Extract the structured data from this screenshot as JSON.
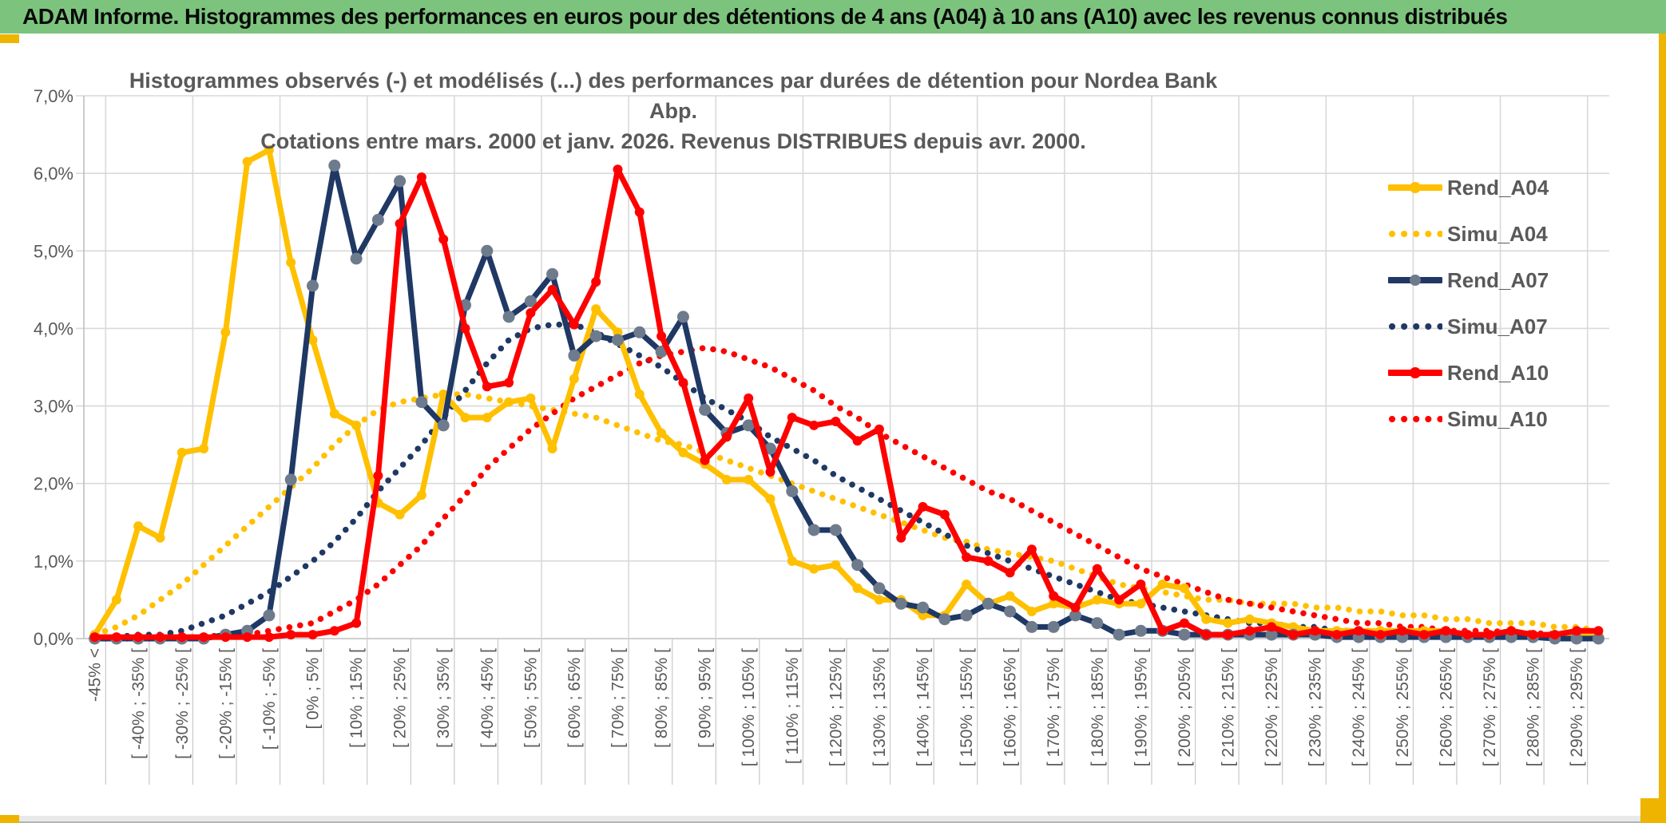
{
  "page": {
    "header_title": "ADAM Informe. Histogrammes des performances en euros pour des détentions de 4 ans (A04) à 10 ans (A10) avec les revenus connus distribués",
    "colors": {
      "header_bg": "#7CC47D",
      "accent_gold": "#EFB400",
      "title_text": "#595959",
      "grid": "#D9D9D9",
      "axis_line": "#BFBFBF",
      "gold_series": "#FFC000",
      "navy_series": "#1F3864",
      "navy_marker": "#6E7B8C",
      "red_series": "#FF0000"
    }
  },
  "chart_data": {
    "type": "line",
    "title_line1": "Histogrammes observés (-) et modélisés (...) des performances par durées de détention pour Nordea Bank Abp.",
    "title_line2": "Cotations entre mars. 2000 et janv. 2026. Revenus DISTRIBUES depuis avr. 2000.",
    "grid": "on",
    "legend_position": "inside-right",
    "ylim": [
      0,
      7
    ],
    "y_tick_labels": [
      "0,0%",
      "1,0%",
      "2,0%",
      "3,0%",
      "4,0%",
      "5,0%",
      "6,0%",
      "7,0%"
    ],
    "n_bins": 70,
    "bins_per_labeled_tick": 2,
    "x_tick_labels": [
      "-45% <",
      "[ -40% ; -35% [",
      "[ -30% ; -25% [",
      "[ -20% ; -15% [",
      "[ -10% ; -5% [",
      "[ 0% ; 5% [",
      "[ 10% ; 15% [",
      "[ 20% ; 25% [",
      "[ 30% ; 35% [",
      "[ 40% ; 45% [",
      "[ 50% ; 55% [",
      "[ 60% ; 65% [",
      "[ 70% ; 75% [",
      "[ 80% ; 85% [",
      "[ 90% ; 95% [",
      "[ 100% ; 105% [",
      "[ 110% ; 115% [",
      "[ 120% ; 125% [",
      "[ 130% ; 135% [",
      "[ 140% ; 145% [",
      "[ 150% ; 155% [",
      "[ 160% ; 165% [",
      "[ 170% ; 175% [",
      "[ 180% ; 185% [",
      "[ 190% ; 195% [",
      "[ 200% ; 205% [",
      "[ 210% ; 215% [",
      "[ 220% ; 225% [",
      "[ 230% ; 235% [",
      "[ 240% ; 245% [",
      "[ 250% ; 255% [",
      "[ 260% ; 265% [",
      "[ 270% ; 275% [",
      "[ 280% ; 285% [",
      "[ 290% ; 295% ["
    ],
    "series": [
      {
        "name": "Simu_A04",
        "style": "dotted",
        "color": "#FFC000",
        "values": [
          0.05,
          0.15,
          0.3,
          0.5,
          0.7,
          0.95,
          1.2,
          1.45,
          1.7,
          1.95,
          2.2,
          2.5,
          2.75,
          2.95,
          3.05,
          3.1,
          3.15,
          3.15,
          3.1,
          3.05,
          3.0,
          2.95,
          2.9,
          2.85,
          2.75,
          2.65,
          2.55,
          2.5,
          2.4,
          2.3,
          2.2,
          2.1,
          2.0,
          1.9,
          1.8,
          1.7,
          1.6,
          1.5,
          1.4,
          1.3,
          1.25,
          1.15,
          1.1,
          1.05,
          1.0,
          0.9,
          0.8,
          0.7,
          0.65,
          0.6,
          0.55,
          0.5,
          0.5,
          0.45,
          0.45,
          0.45,
          0.4,
          0.4,
          0.35,
          0.35,
          0.3,
          0.3,
          0.25,
          0.25,
          0.2,
          0.2,
          0.2,
          0.15,
          0.15,
          0.1
        ]
      },
      {
        "name": "Simu_A07",
        "style": "dotted",
        "color": "#1F3864",
        "values": [
          0,
          0.02,
          0.05,
          0.05,
          0.1,
          0.2,
          0.3,
          0.45,
          0.6,
          0.8,
          1.0,
          1.25,
          1.55,
          1.9,
          2.2,
          2.5,
          2.85,
          3.2,
          3.55,
          3.85,
          4.0,
          4.05,
          4.05,
          3.95,
          3.8,
          3.65,
          3.5,
          3.3,
          3.1,
          2.95,
          2.8,
          2.6,
          2.45,
          2.3,
          2.1,
          1.95,
          1.8,
          1.65,
          1.5,
          1.35,
          1.2,
          1.1,
          1.0,
          0.9,
          0.8,
          0.7,
          0.6,
          0.5,
          0.45,
          0.4,
          0.35,
          0.3,
          0.25,
          0.2,
          0.2,
          0.15,
          0.15,
          0.1,
          0.1,
          0.1,
          0.05,
          0.05,
          0.05,
          0.05,
          0.05,
          0.05,
          0.05,
          0.05,
          0.05,
          0.05
        ]
      },
      {
        "name": "Simu_A10",
        "style": "dotted",
        "color": "#FF0000",
        "values": [
          0,
          0,
          0,
          0,
          0.02,
          0.02,
          0.05,
          0.05,
          0.1,
          0.15,
          0.2,
          0.35,
          0.5,
          0.7,
          0.95,
          1.2,
          1.55,
          1.85,
          2.2,
          2.45,
          2.7,
          2.9,
          3.1,
          3.25,
          3.4,
          3.55,
          3.65,
          3.7,
          3.75,
          3.7,
          3.6,
          3.5,
          3.35,
          3.2,
          3.0,
          2.85,
          2.65,
          2.5,
          2.35,
          2.2,
          2.05,
          1.9,
          1.8,
          1.65,
          1.5,
          1.35,
          1.2,
          1.05,
          0.9,
          0.8,
          0.7,
          0.6,
          0.5,
          0.45,
          0.4,
          0.35,
          0.3,
          0.25,
          0.2,
          0.2,
          0.15,
          0.15,
          0.1,
          0.1,
          0.1,
          0.08,
          0.07,
          0.06,
          0.05,
          0.05
        ]
      },
      {
        "name": "Rend_A04",
        "style": "solid",
        "color": "#FFC000",
        "marker": "#FFC000",
        "values": [
          0.05,
          0.5,
          1.45,
          1.3,
          2.4,
          2.45,
          3.95,
          6.15,
          6.3,
          4.85,
          3.85,
          2.9,
          2.75,
          1.75,
          1.6,
          1.85,
          3.15,
          2.85,
          2.85,
          3.05,
          3.1,
          2.45,
          3.35,
          4.25,
          3.95,
          3.15,
          2.65,
          2.4,
          2.25,
          2.05,
          2.05,
          1.8,
          1.0,
          0.9,
          0.95,
          0.65,
          0.5,
          0.5,
          0.3,
          0.3,
          0.7,
          0.45,
          0.55,
          0.35,
          0.45,
          0.4,
          0.5,
          0.45,
          0.45,
          0.7,
          0.65,
          0.25,
          0.2,
          0.25,
          0.2,
          0.15,
          0.1,
          0.1,
          0.1,
          0.1,
          0.1,
          0.1,
          0.1,
          0.05,
          0.05,
          0.1,
          0.05,
          0.05,
          0.05,
          0.05
        ]
      },
      {
        "name": "Rend_A07",
        "style": "solid",
        "color": "#1F3864",
        "marker": "#6E7B8C",
        "values": [
          0,
          0,
          0,
          0,
          0,
          0,
          0.05,
          0.1,
          0.3,
          2.05,
          4.55,
          6.1,
          4.9,
          5.4,
          5.9,
          3.05,
          2.75,
          4.3,
          5.0,
          4.15,
          4.35,
          4.7,
          3.65,
          3.9,
          3.85,
          3.95,
          3.7,
          4.15,
          2.95,
          2.65,
          2.75,
          2.45,
          1.9,
          1.4,
          1.4,
          0.95,
          0.65,
          0.45,
          0.4,
          0.25,
          0.3,
          0.45,
          0.35,
          0.15,
          0.15,
          0.3,
          0.2,
          0.05,
          0.1,
          0.1,
          0.05,
          0.05,
          0.05,
          0.05,
          0.05,
          0.05,
          0.05,
          0.02,
          0.02,
          0.02,
          0.02,
          0.02,
          0.02,
          0.02,
          0.02,
          0.02,
          0.02,
          0,
          0,
          0
        ]
      },
      {
        "name": "Rend_A10",
        "style": "solid",
        "color": "#FF0000",
        "marker": "#FF0000",
        "values": [
          0.02,
          0.02,
          0.02,
          0.02,
          0.02,
          0.02,
          0.02,
          0.02,
          0.02,
          0.05,
          0.05,
          0.1,
          0.2,
          2.1,
          5.35,
          5.95,
          5.15,
          4.0,
          3.25,
          3.3,
          4.2,
          4.5,
          4.05,
          4.6,
          6.05,
          5.5,
          3.9,
          3.3,
          2.3,
          2.6,
          3.1,
          2.15,
          2.85,
          2.75,
          2.8,
          2.55,
          2.7,
          1.3,
          1.7,
          1.6,
          1.05,
          1.0,
          0.85,
          1.15,
          0.55,
          0.4,
          0.9,
          0.5,
          0.7,
          0.1,
          0.2,
          0.05,
          0.05,
          0.1,
          0.15,
          0.05,
          0.1,
          0.05,
          0.1,
          0.05,
          0.1,
          0.05,
          0.1,
          0.05,
          0.05,
          0.1,
          0.05,
          0.05,
          0.1,
          0.1
        ]
      }
    ]
  }
}
